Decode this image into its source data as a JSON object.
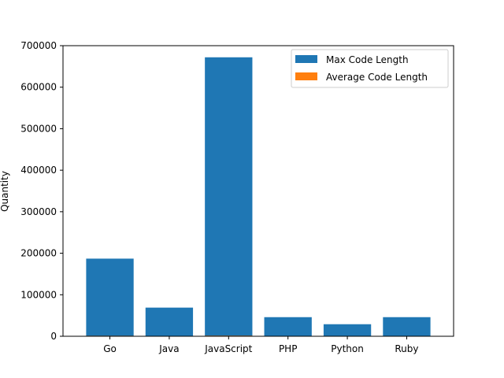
{
  "chart_data": {
    "type": "bar",
    "title": "",
    "xlabel": "",
    "ylabel": "Quantity",
    "categories": [
      "Go",
      "Java",
      "JavaScript",
      "PHP",
      "Python",
      "Ruby"
    ],
    "series": [
      {
        "name": "Max Code Length",
        "color": "#1f77b4",
        "values": [
          187000,
          69000,
          672000,
          46000,
          29000,
          46000
        ]
      },
      {
        "name": "Average Code Length",
        "color": "#ff7f0e",
        "values": [
          1200,
          700,
          1500,
          600,
          450,
          500
        ]
      }
    ],
    "ylim": [
      0,
      700000
    ],
    "yticks": [
      0,
      100000,
      200000,
      300000,
      400000,
      500000,
      600000,
      700000
    ],
    "grid": false,
    "legend_position": "top-right"
  }
}
